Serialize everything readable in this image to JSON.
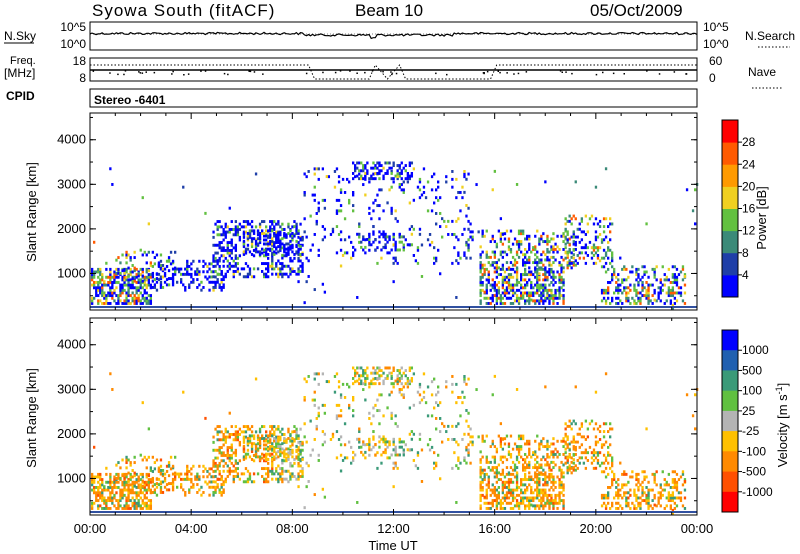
{
  "header": {
    "station": "Syowa South (fitACF)",
    "beam": "Beam 10",
    "date": "05/Oct/2009"
  },
  "panels": {
    "nsky": {
      "label": "N.Sky",
      "ticks_left": [
        "10^5",
        "10^0"
      ],
      "ticks_right": [
        "10^5",
        "10^0"
      ],
      "right_label": "N.Search"
    },
    "freq": {
      "label": "Freq.",
      "unit": "[MHz]",
      "ticks_left": [
        "18",
        "8"
      ],
      "ticks_right": [
        "60",
        "0"
      ],
      "right_label": "Nave"
    },
    "cpid": {
      "label": "CPID",
      "value": "Stereo -6401"
    }
  },
  "chart_data": [
    {
      "type": "heatmap",
      "quantity": "Power",
      "ylabel": "Slant Range [km]",
      "xlabel": "",
      "yticks": [
        "1000",
        "2000",
        "3000",
        "4000"
      ],
      "ylim": [
        180,
        4600
      ],
      "colorbar_label": "Power [dB]",
      "colorbar_ticks": [
        "4",
        "8",
        "12",
        "16",
        "20",
        "24",
        "28"
      ],
      "colorbar_colors": [
        "#0000ff",
        "#1f3fa8",
        "#3b8a78",
        "#62c040",
        "#f0d020",
        "#ff9a00",
        "#ff5a00",
        "#ff0000"
      ]
    },
    {
      "type": "heatmap",
      "quantity": "Velocity",
      "ylabel": "Slant Range [km]",
      "xlabel": "Time UT",
      "yticks": [
        "1000",
        "2000",
        "3000",
        "4000"
      ],
      "ylim": [
        180,
        4600
      ],
      "xticks": [
        "00:00",
        "04:00",
        "08:00",
        "12:00",
        "16:00",
        "20:00",
        "00:00"
      ],
      "colorbar_label": "Velocity [m s",
      "colorbar_label_sup": "-1",
      "colorbar_label_end": "]",
      "colorbar_ticks": [
        "1000",
        "500",
        "100",
        "25",
        "-25",
        "-100",
        "-500",
        "-1000"
      ],
      "colorbar_colors": [
        "#0000ff",
        "#2060b0",
        "#3a9a78",
        "#60c040",
        "#b4b4b4",
        "#ffc000",
        "#ff8a00",
        "#ff5000",
        "#ff0000"
      ]
    }
  ]
}
